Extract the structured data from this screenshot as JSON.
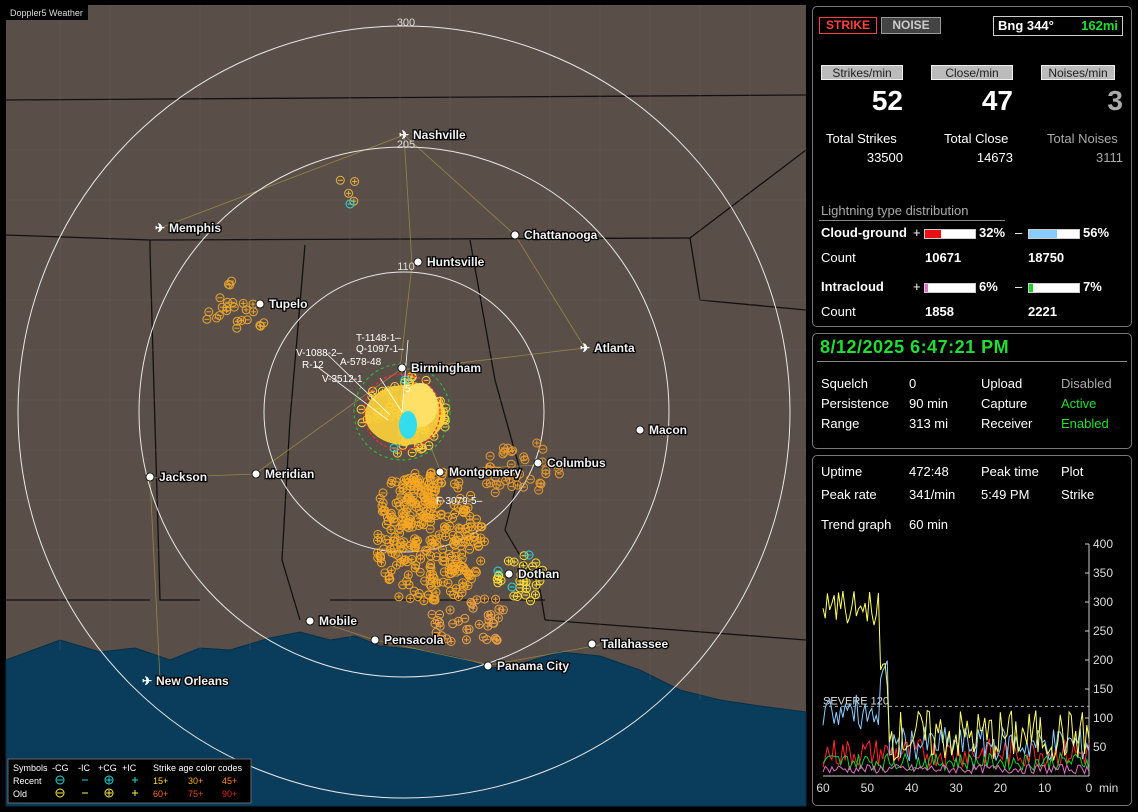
{
  "app": {
    "title": "Doppler5 Weather"
  },
  "header": {
    "strike_btn": "STRIKE",
    "noise_btn": "NOISE",
    "bearing_label": "Bng 344°",
    "bearing_distance": "162mi"
  },
  "rates": {
    "strikes_label": "Strikes/min",
    "strikes_value": "52",
    "close_label": "Close/min",
    "close_value": "47",
    "noises_label": "Noises/min",
    "noises_value": "3"
  },
  "totals": {
    "strikes_label": "Total Strikes",
    "strikes_value": "33500",
    "close_label": "Total Close",
    "close_value": "14673",
    "noises_label": "Total Noises",
    "noises_value": "3111"
  },
  "distribution": {
    "title": "Lightning type distribution",
    "cg_label": "Cloud-ground",
    "cg_pos_sign": "+",
    "cg_pos_pct": "32%",
    "cg_pos_fraction": 0.32,
    "cg_pos_color": "#e81010",
    "cg_neg_sign": "–",
    "cg_neg_pct": "56%",
    "cg_neg_fraction": 0.56,
    "cg_neg_color": "#88ccff",
    "count_label": "Count",
    "cg_pos_count": "10671",
    "cg_neg_count": "18750",
    "ic_label": "Intracloud",
    "ic_pos_sign": "+",
    "ic_pos_pct": "6%",
    "ic_pos_fraction": 0.06,
    "ic_pos_color": "#e070c0",
    "ic_neg_sign": "–",
    "ic_neg_pct": "7%",
    "ic_neg_fraction": 0.07,
    "ic_neg_color": "#22cc33",
    "ic_pos_count": "1858",
    "ic_neg_count": "2221"
  },
  "status": {
    "datetime": "8/12/2025 6:47:21 PM",
    "squelch_label": "Squelch",
    "squelch_value": "0",
    "persistence_label": "Persistence",
    "persistence_value": "90 min",
    "range_label": "Range",
    "range_value": "313 mi",
    "upload_label": "Upload",
    "upload_value": "Disabled",
    "capture_label": "Capture",
    "capture_value": "Active",
    "receiver_label": "Receiver",
    "receiver_value": "Enabled"
  },
  "trend": {
    "uptime_label": "Uptime",
    "uptime_value": "472:48",
    "peak_time_label": "Peak time",
    "peak_time_value": "5:49 PM",
    "plot_label": "Plot",
    "plot_value": "Strike",
    "peak_rate_label": "Peak rate",
    "peak_rate_value": "341/min",
    "trend_label": "Trend graph",
    "trend_value": "60 min",
    "severe_label": "SEVERE 120",
    "y_ticks": [
      "400",
      "350",
      "300",
      "250",
      "200",
      "150",
      "100",
      "50"
    ],
    "x_ticks": [
      "60",
      "50",
      "40",
      "30",
      "20",
      "10",
      "0"
    ],
    "x_unit": "min"
  },
  "map": {
    "range_labels": [
      "300",
      "205",
      "110"
    ],
    "cities": [
      {
        "name": "Nashville",
        "kind": "airport"
      },
      {
        "name": "Memphis",
        "kind": "airport"
      },
      {
        "name": "Chattanooga",
        "kind": "city"
      },
      {
        "name": "Huntsville",
        "kind": "city"
      },
      {
        "name": "Tupelo",
        "kind": "city"
      },
      {
        "name": "Atlanta",
        "kind": "airport"
      },
      {
        "name": "Birmingham",
        "kind": "city"
      },
      {
        "name": "Macon",
        "kind": "city"
      },
      {
        "name": "Jackson",
        "kind": "city"
      },
      {
        "name": "Meridian",
        "kind": "city"
      },
      {
        "name": "Montgomery",
        "kind": "city"
      },
      {
        "name": "Columbus",
        "kind": "city"
      },
      {
        "name": "Dothan",
        "kind": "city"
      },
      {
        "name": "Mobile",
        "kind": "city"
      },
      {
        "name": "Pensacola",
        "kind": "city"
      },
      {
        "name": "Tallahassee",
        "kind": "city"
      },
      {
        "name": "Panama City",
        "kind": "city"
      },
      {
        "name": "New Orleans",
        "kind": "airport"
      }
    ],
    "storm_tags": [
      "T-1148-1–",
      "Q-1097-1–",
      "V-1088-2–",
      "A-578-48",
      "R-12",
      "V-3512-1",
      "F-3079-5–",
      "5"
    ]
  },
  "legend": {
    "symbols_label": "Symbols",
    "headers": [
      "-CG",
      "-IC",
      "+CG",
      "+IC"
    ],
    "recent_label": "Recent",
    "old_label": "Old",
    "age_title": "Strike age color codes",
    "age_recent": [
      "15+",
      "30+",
      "45+"
    ],
    "age_old": [
      "60+",
      "75+",
      "90+"
    ]
  }
}
